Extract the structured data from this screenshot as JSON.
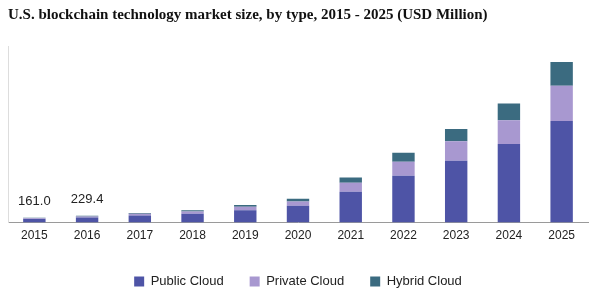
{
  "chart_data": {
    "type": "bar",
    "title": "U.S. blockchain technology market size, by type, 2015 - 2025 (USD Million)",
    "categories": [
      "2015",
      "2016",
      "2017",
      "2018",
      "2019",
      "2020",
      "2021",
      "2022",
      "2023",
      "2024",
      "2025"
    ],
    "series": [
      {
        "name": "Public Cloud",
        "color": "#4e54a6",
        "values": [
          120,
          170,
          240,
          300,
          420,
          570,
          1050,
          1590,
          2100,
          2670,
          3450
        ]
      },
      {
        "name": "Private Cloud",
        "color": "#a898d0",
        "values": [
          28,
          40,
          60,
          80,
          120,
          150,
          300,
          480,
          660,
          810,
          1200
        ]
      },
      {
        "name": "Hybrid Cloud",
        "color": "#3b6b80",
        "values": [
          13,
          19.4,
          30,
          40,
          60,
          90,
          180,
          300,
          420,
          570,
          810
        ]
      }
    ],
    "annotations": [
      {
        "category": "2015",
        "value": 161.0,
        "label": "161.0"
      },
      {
        "category": "2016",
        "value": 229.4,
        "label": "229.4"
      }
    ],
    "ylim": [
      0,
      6000
    ],
    "stacked": true,
    "grid": false,
    "legend": "bottom",
    "tick_labels": "x"
  }
}
